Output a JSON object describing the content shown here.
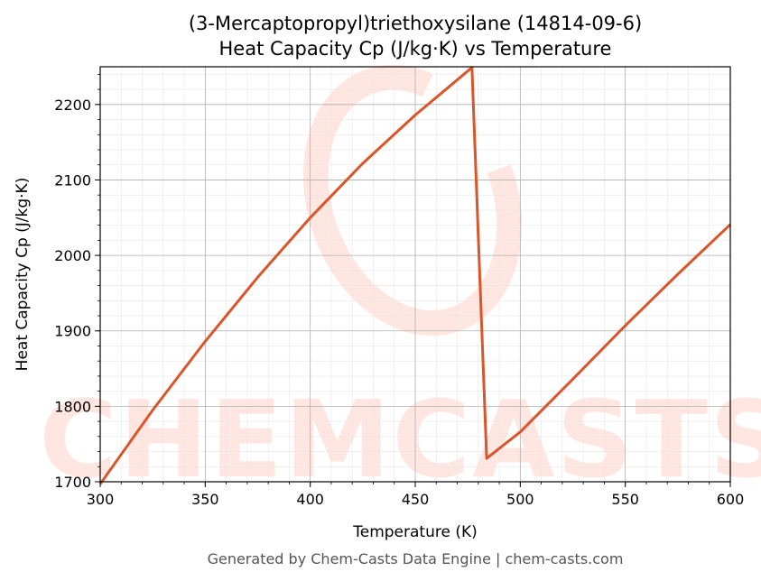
{
  "chart_data": {
    "type": "line",
    "title_line1": "(3-Mercaptopropyl)triethoxysilane (14814-09-6)",
    "title_line2": "Heat Capacity Cp (J/kg·K) vs Temperature",
    "xlabel": "Temperature (K)",
    "ylabel": "Heat Capacity Cp (J/kg·K)",
    "xlim": [
      300,
      600
    ],
    "ylim": [
      1700,
      2250
    ],
    "xticks": [
      300,
      350,
      400,
      450,
      500,
      550,
      600
    ],
    "yticks": [
      1700,
      1800,
      1900,
      2000,
      2100,
      2200
    ],
    "grid": true,
    "series": [
      {
        "color": "#d9552a",
        "points": [
          [
            300,
            1697
          ],
          [
            325,
            1795
          ],
          [
            350,
            1886
          ],
          [
            375,
            1971
          ],
          [
            400,
            2050
          ],
          [
            425,
            2122
          ],
          [
            450,
            2186
          ],
          [
            465,
            2221
          ],
          [
            477,
            2249
          ],
          [
            484,
            1731
          ],
          [
            500,
            1766
          ],
          [
            525,
            1836
          ],
          [
            550,
            1907
          ],
          [
            575,
            1975
          ],
          [
            600,
            2041
          ]
        ]
      }
    ],
    "watermark": "CHEMCASTS",
    "footer": "Generated by Chem-Casts Data Engine | chem-casts.com"
  }
}
